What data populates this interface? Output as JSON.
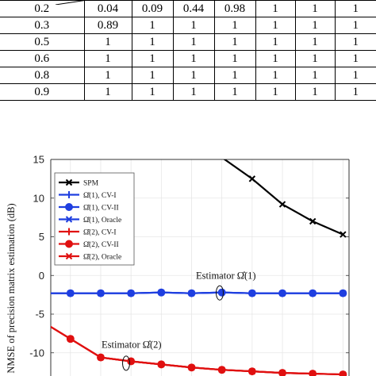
{
  "table": {
    "rows": [
      {
        "label": "0.2",
        "cells": [
          "0.04",
          "0.09",
          "0.44",
          "0.98",
          "1",
          "1",
          "1"
        ]
      },
      {
        "label": "0.3",
        "cells": [
          "0.89",
          "1",
          "1",
          "1",
          "1",
          "1",
          "1"
        ]
      },
      {
        "label": "0.5",
        "cells": [
          "1",
          "1",
          "1",
          "1",
          "1",
          "1",
          "1"
        ]
      },
      {
        "label": "0.6",
        "cells": [
          "1",
          "1",
          "1",
          "1",
          "1",
          "1",
          "1"
        ]
      },
      {
        "label": "0.8",
        "cells": [
          "1",
          "1",
          "1",
          "1",
          "1",
          "1",
          "1"
        ]
      },
      {
        "label": "0.9",
        "cells": [
          "1",
          "1",
          "1",
          "1",
          "1",
          "1",
          "1"
        ]
      }
    ]
  },
  "chart_data": {
    "type": "line",
    "ylabel": "NMSE of precision matrix estimation (dB)",
    "xlabel": "",
    "ylim": [
      -13,
      15
    ],
    "yticks": [
      15,
      10,
      5,
      0,
      -5,
      -10
    ],
    "grid": true,
    "legend_position": "top-left",
    "x": [
      1,
      2,
      3,
      4,
      5,
      6,
      7,
      8,
      9,
      10
    ],
    "series": [
      {
        "name": "SPM",
        "color": "#000000",
        "marker": "x",
        "values": [
          null,
          null,
          null,
          null,
          null,
          null,
          12.5,
          9.2,
          7.0,
          5.3
        ]
      },
      {
        "name": "Ω̂(1), CV-I",
        "color": "#1f3fe0",
        "marker": "plus",
        "values": [
          -2.3,
          -2.3,
          -2.3,
          -2.2,
          -2.3,
          -2.2,
          -2.3,
          -2.3,
          -2.3,
          -2.3
        ]
      },
      {
        "name": "Ω̂(1), CV-II",
        "color": "#1f3fe0",
        "marker": "circle",
        "values": [
          -2.3,
          -2.3,
          -2.3,
          -2.2,
          -2.3,
          -2.2,
          -2.3,
          -2.3,
          -2.3,
          -2.3
        ]
      },
      {
        "name": "Ω̂(1), Oracle",
        "color": "#1f3fe0",
        "marker": "x",
        "values": [
          -2.3,
          -2.3,
          -2.3,
          -2.2,
          -2.3,
          -2.2,
          -2.3,
          -2.3,
          -2.3,
          -2.3
        ]
      },
      {
        "name": "Ω̂(2), CV-I",
        "color": "#e01010",
        "marker": "plus",
        "values": [
          -8.2,
          -10.6,
          -11.1,
          -11.5,
          -11.9,
          -12.2,
          -12.4,
          -12.6,
          -12.7,
          -12.8
        ]
      },
      {
        "name": "Ω̂(2), CV-II",
        "color": "#e01010",
        "marker": "circle",
        "values": [
          -8.2,
          -10.6,
          -11.1,
          -11.5,
          -11.9,
          -12.2,
          -12.4,
          -12.6,
          -12.7,
          -12.8
        ]
      },
      {
        "name": "Ω̂(2), Oracle",
        "color": "#e01010",
        "marker": "x",
        "values": [
          -8.2,
          -10.6,
          -11.1,
          -11.5,
          -11.9,
          -12.2,
          -12.4,
          -12.6,
          -12.7,
          -12.8
        ]
      }
    ],
    "annotations": [
      {
        "text": "Estimator Ω̂(1)"
      },
      {
        "text": "Estimator Ω̂(2)"
      }
    ]
  }
}
